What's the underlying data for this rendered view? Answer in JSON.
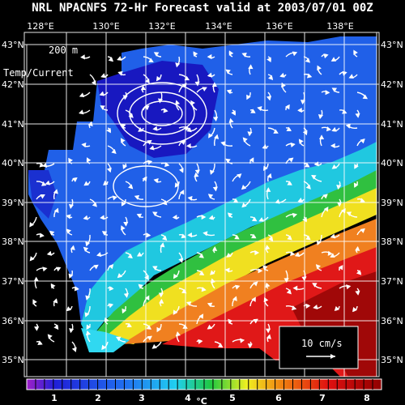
{
  "title": "NRL NPACNFS 72-Hr Forecast valid at 2003/07/01 00Z",
  "depth_label": "200 m",
  "field_label": "Temp/Current",
  "lon_labels": [
    "128°E",
    "130°E",
    "132°E",
    "134°E",
    "136°E",
    "138°E"
  ],
  "lat_labels": [
    "43°N",
    "42°N",
    "41°N",
    "40°N",
    "39°N",
    "38°N",
    "37°N",
    "36°N",
    "35°N"
  ],
  "colorbar": {
    "ticks": [
      "1",
      "2",
      "3",
      "4",
      "5",
      "6",
      "7",
      "8"
    ],
    "unit": "°C"
  },
  "scale_vector": {
    "label": "10 cm/s"
  },
  "colors": {
    "cold": "#1a1ad8",
    "mid": "#22c8f0",
    "warm": "#f0e020",
    "hot": "#d81010"
  }
}
